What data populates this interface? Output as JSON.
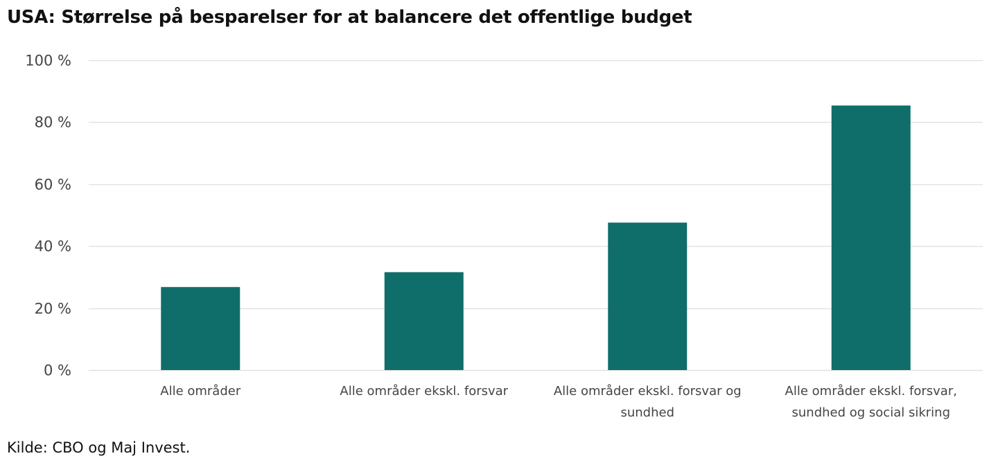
{
  "chart_data": {
    "type": "bar",
    "title": "USA: Størrelse på besparelser for at balancere det offentlige budget",
    "categories": [
      [
        "Alle områder"
      ],
      [
        "Alle områder ekskl. forsvar"
      ],
      [
        "Alle områder ekskl. forsvar og",
        "sundhed"
      ],
      [
        "Alle områder ekskl. forsvar,",
        "sundhed og social sikring"
      ]
    ],
    "values": [
      26.8,
      31.6,
      47.6,
      85.4
    ],
    "ylim": [
      0,
      100
    ],
    "yticks": [
      0,
      20,
      40,
      60,
      80,
      100
    ],
    "ytick_labels": [
      "0 %",
      "20 %",
      "40 %",
      "60 %",
      "80 %",
      "100 %"
    ],
    "xlabel": "",
    "ylabel": "",
    "grid": true,
    "legend": "none",
    "bar_color": "#0f6e69",
    "grid_color": "#e2e2e2"
  },
  "source": "Kilde: CBO og Maj Invest."
}
